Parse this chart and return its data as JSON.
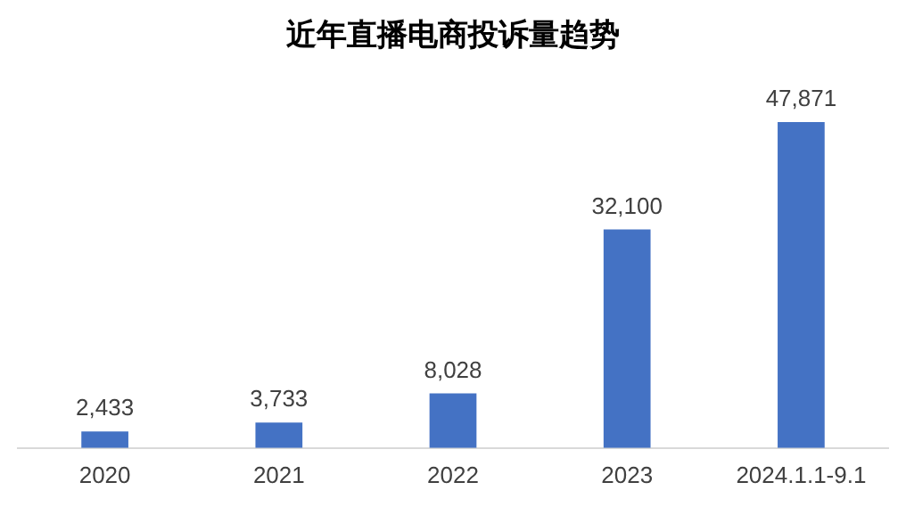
{
  "chart_data": {
    "type": "bar",
    "title": "近年直播电商投诉量趋势",
    "categories": [
      "2020",
      "2021",
      "2022",
      "2023",
      "2024.1.1-9.1"
    ],
    "values": [
      2433,
      3733,
      8028,
      32100,
      47871
    ],
    "value_labels": [
      "2,433",
      "3,733",
      "8,028",
      "32,100",
      "47,871"
    ],
    "color": "#4472c4",
    "grid": false,
    "legend": false
  }
}
